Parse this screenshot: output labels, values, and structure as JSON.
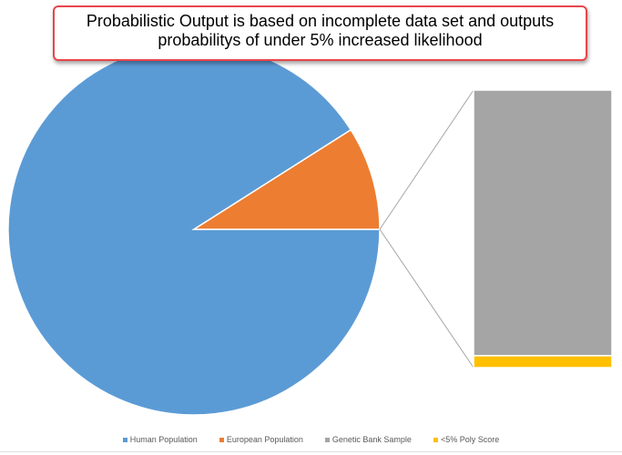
{
  "annotation": {
    "line1": "Probabilistic Output is based on incomplete data set and outputs",
    "line2": "probabilitys of under 5% increased likelihood"
  },
  "chart_data": {
    "type": "pie",
    "subtype": "bar-of-pie",
    "pie": [
      {
        "name": "Human Population",
        "value": 91,
        "color": "#5b9bd5"
      },
      {
        "name": "European Population",
        "value": 9,
        "color": "#ed7d31"
      }
    ],
    "bar": [
      {
        "name": "Genetic Bank Sample",
        "value": 95.7,
        "color": "#a5a5a5"
      },
      {
        "name": "<5% Poly Score",
        "value": 4.3,
        "color": "#ffc000"
      }
    ],
    "legend": [
      "Human Population",
      "European Population",
      "Genetic Bank Sample",
      "<5% Poly Score"
    ],
    "legend_position": "bottom"
  }
}
